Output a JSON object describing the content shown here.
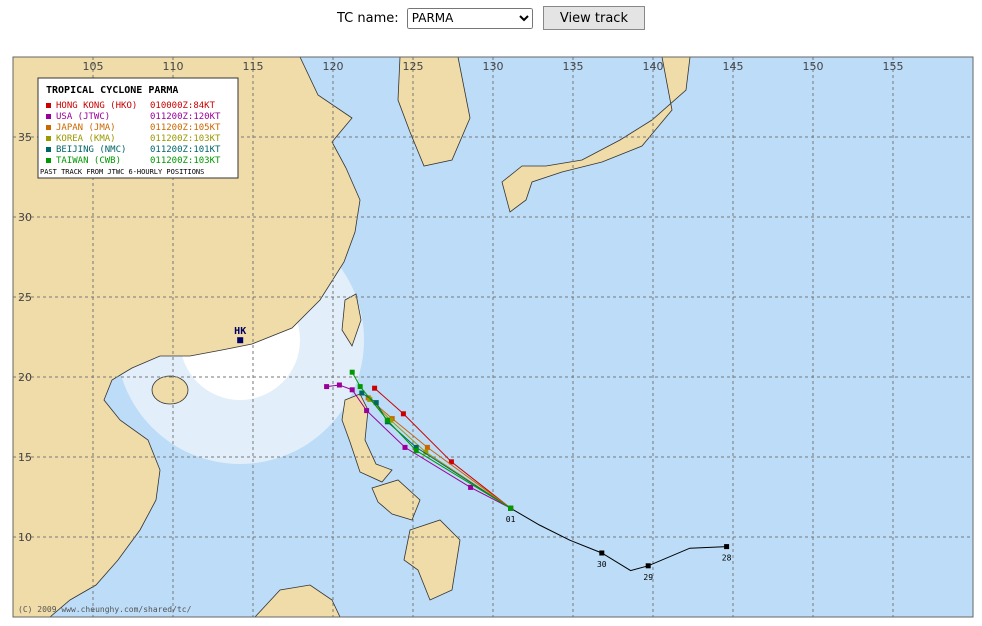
{
  "controls": {
    "label": "TC name:",
    "selected": "PARMA",
    "button": "View track"
  },
  "map": {
    "lon_range": [
      100,
      160
    ],
    "lat_range": [
      5,
      40
    ],
    "lon_ticks": [
      105,
      110,
      115,
      120,
      125,
      130,
      135,
      140,
      145,
      150,
      155
    ],
    "lat_ticks": [
      10,
      15,
      20,
      25,
      30,
      35
    ],
    "station": {
      "label": "HK",
      "lon": 114.2,
      "lat": 22.3
    },
    "legend": {
      "title": "TROPICAL CYCLONE PARMA",
      "note": "PAST TRACK FROM JTWC 6-HOURLY POSITIONS"
    },
    "past_track": [
      {
        "lon": 144.6,
        "lat": 9.4,
        "label": "28"
      },
      {
        "lon": 142.3,
        "lat": 9.3
      },
      {
        "lon": 139.7,
        "lat": 8.2,
        "label": "29"
      },
      {
        "lon": 138.6,
        "lat": 7.9
      },
      {
        "lon": 136.8,
        "lat": 9.0,
        "label": "30"
      },
      {
        "lon": 134.8,
        "lat": 9.8
      },
      {
        "lon": 132.9,
        "lat": 10.75
      },
      {
        "lon": 131.1,
        "lat": 11.8,
        "label": "01"
      }
    ],
    "forecasts": [
      {
        "name": "HONG KONG (HKO)",
        "info": "010000Z:84KT",
        "color": "#cc0000",
        "lon": [
          131.1,
          127.4,
          124.4,
          122.6
        ],
        "lat": [
          11.8,
          14.7,
          17.7,
          19.3
        ]
      },
      {
        "name": "USA (JTWC)",
        "info": "011200Z:120KT",
        "color": "#990099",
        "lon": [
          131.1,
          128.6,
          124.5,
          122.1,
          121.2,
          120.4,
          119.6
        ],
        "lat": [
          11.8,
          13.1,
          15.6,
          17.9,
          19.2,
          19.5,
          19.4
        ]
      },
      {
        "name": "JAPAN (JMA)",
        "info": "011200Z:105KT",
        "color": "#cc6600",
        "lon": [
          131.1,
          125.9,
          123.7,
          122.2
        ],
        "lat": [
          11.8,
          15.6,
          17.4,
          18.7
        ]
      },
      {
        "name": "KOREA (KMA)",
        "info": "011200Z:103KT",
        "color": "#999900",
        "lon": [
          131.1,
          125.8,
          123.6,
          122.3
        ],
        "lat": [
          11.8,
          15.3,
          17.3,
          18.6
        ]
      },
      {
        "name": "BEIJING (NMC)",
        "info": "011200Z:101KT",
        "color": "#006666",
        "lon": [
          131.1,
          125.2,
          123.4,
          122.7,
          121.8
        ],
        "lat": [
          11.8,
          15.6,
          17.2,
          18.4,
          19.0
        ]
      },
      {
        "name": "TAIWAN (CWB)",
        "info": "011200Z:103KT",
        "color": "#009900",
        "lon": [
          131.1,
          125.2,
          123.4,
          121.7,
          121.2
        ],
        "lat": [
          11.8,
          15.4,
          17.3,
          19.4,
          20.3
        ]
      }
    ],
    "copyright": "(C) 2009 www.cheunghy.com/shared/tc/"
  }
}
